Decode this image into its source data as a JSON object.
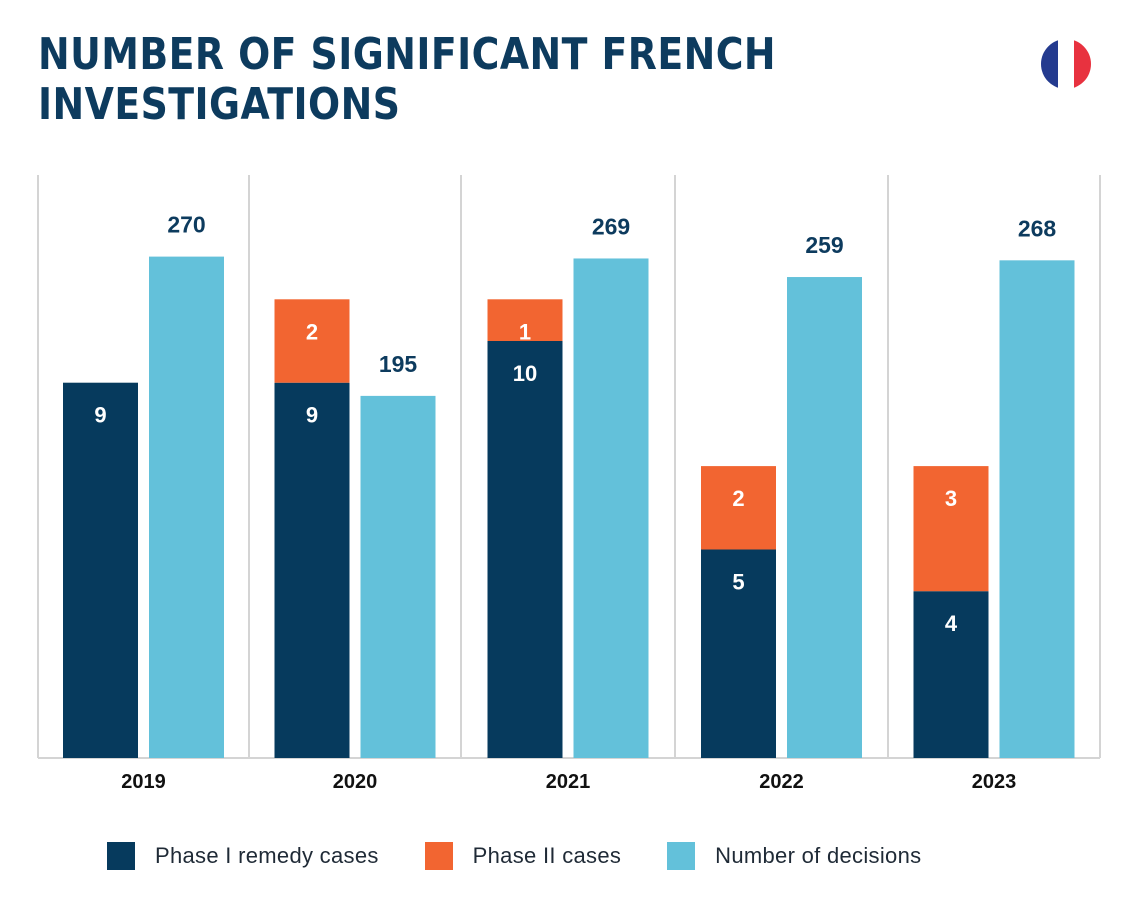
{
  "title_lines": [
    "NUMBER OF SIGNIFICANT FRENCH",
    "INVESTIGATIONS"
  ],
  "flag": {
    "icon": "france-flag-icon",
    "colors": [
      "#243b8f",
      "#ffffff",
      "#e8323f"
    ]
  },
  "colors": {
    "phase1": "#063a5d",
    "phase2": "#f26531",
    "decisions": "#63c1da",
    "text_dark": "#0d3b5e",
    "grid": "#d4d4d4"
  },
  "chart_data": {
    "type": "bar",
    "categories": [
      "2019",
      "2020",
      "2021",
      "2022",
      "2023"
    ],
    "series": [
      {
        "name": "Phase I remedy cases",
        "values": [
          9,
          9,
          10,
          5,
          4
        ],
        "stack": "cases"
      },
      {
        "name": "Phase II cases",
        "values": [
          0,
          2,
          1,
          2,
          3
        ],
        "stack": "cases"
      },
      {
        "name": "Number of decisions",
        "values": [
          270,
          195,
          269,
          259,
          268
        ],
        "stack": "decisions"
      }
    ],
    "data_labels": {
      "phase1": [
        "9",
        "9",
        "10",
        "5",
        "4"
      ],
      "phase2": [
        "",
        "2",
        "1",
        "2",
        "3"
      ],
      "decisions": [
        "270",
        "195",
        "269",
        "259",
        "268"
      ]
    },
    "grid": "vertical separators",
    "legend_position": "bottom"
  },
  "legend": [
    {
      "label": "Phase I remedy cases",
      "color": "#063a5d"
    },
    {
      "label": "Phase II cases",
      "color": "#f26531"
    },
    {
      "label": "Number of decisions",
      "color": "#63c1da"
    }
  ]
}
